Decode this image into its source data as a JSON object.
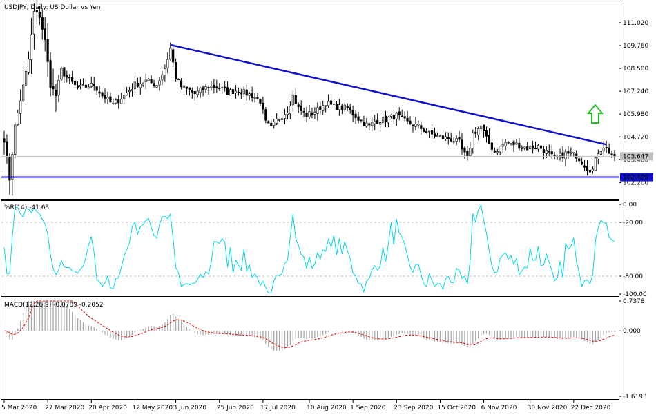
{
  "chart_data": [
    {
      "type": "candlestick",
      "panel": "price",
      "title": "USDJPY, Daily:  US Dollar vs Yen",
      "ylim": [
        101.3,
        112.2
      ],
      "y_ticks": [
        "111.020",
        "109.760",
        "108.500",
        "107.240",
        "105.980",
        "104.720",
        "103.460",
        "102.200"
      ],
      "y_tick_values": [
        111.02,
        109.76,
        108.5,
        107.24,
        105.98,
        104.72,
        103.46,
        102.2
      ],
      "current_price_label": "103.647",
      "current_price": 103.647,
      "support_label": "102.499",
      "support_level": 102.499,
      "trendline": {
        "from": [
          61,
          109.8
        ],
        "to": [
          221,
          104.3
        ]
      },
      "arrow": "up",
      "bar_count": 225,
      "keypoints": [
        [
          0,
          104.6
        ],
        [
          2,
          102.4
        ],
        [
          4,
          105.3
        ],
        [
          7,
          107.5
        ],
        [
          9,
          109.0
        ],
        [
          11,
          111.6
        ],
        [
          13,
          111.4
        ],
        [
          15,
          110.0
        ],
        [
          17,
          107.6
        ],
        [
          19,
          107.0
        ],
        [
          21,
          108.4
        ],
        [
          23,
          108.0
        ],
        [
          27,
          107.4
        ],
        [
          33,
          107.6
        ],
        [
          36,
          107.0
        ],
        [
          40,
          106.5
        ],
        [
          44,
          107.0
        ],
        [
          48,
          107.6
        ],
        [
          52,
          107.8
        ],
        [
          56,
          107.6
        ],
        [
          59,
          108.5
        ],
        [
          61,
          109.6
        ],
        [
          63,
          108.0
        ],
        [
          65,
          107.5
        ],
        [
          70,
          107.1
        ],
        [
          75,
          107.5
        ],
        [
          78,
          107.5
        ],
        [
          82,
          107.2
        ],
        [
          86,
          107.3
        ],
        [
          91,
          107.0
        ],
        [
          94,
          106.7
        ],
        [
          96,
          105.5
        ],
        [
          98,
          105.2
        ],
        [
          100,
          105.6
        ],
        [
          104,
          106.2
        ],
        [
          106,
          107.0
        ],
        [
          108,
          106.3
        ],
        [
          111,
          105.9
        ],
        [
          115,
          106.2
        ],
        [
          118,
          106.6
        ],
        [
          121,
          106.4
        ],
        [
          126,
          106.3
        ],
        [
          128,
          106.0
        ],
        [
          131,
          105.6
        ],
        [
          134,
          105.3
        ],
        [
          136,
          105.6
        ],
        [
          140,
          105.7
        ],
        [
          144,
          105.9
        ],
        [
          148,
          105.5
        ],
        [
          152,
          105.3
        ],
        [
          156,
          104.9
        ],
        [
          160,
          104.7
        ],
        [
          164,
          104.6
        ],
        [
          167,
          104.4
        ],
        [
          168,
          104.0
        ],
        [
          170,
          103.5
        ],
        [
          172,
          104.9
        ],
        [
          175,
          105.3
        ],
        [
          177,
          104.6
        ],
        [
          180,
          103.9
        ],
        [
          184,
          104.4
        ],
        [
          188,
          104.3
        ],
        [
          192,
          104.1
        ],
        [
          196,
          104.2
        ],
        [
          199,
          103.9
        ],
        [
          202,
          103.5
        ],
        [
          206,
          103.8
        ],
        [
          210,
          103.7
        ],
        [
          214,
          103.0
        ],
        [
          216,
          102.9
        ],
        [
          218,
          103.9
        ],
        [
          220,
          104.2
        ],
        [
          222,
          103.9
        ],
        [
          224,
          103.65
        ]
      ]
    },
    {
      "type": "line",
      "panel": "williams_r",
      "label": "%R(14) -41.63",
      "ylim": [
        -100,
        0
      ],
      "y_ticks": [
        "0.00",
        "-20.00",
        "-80.00",
        "-100.00"
      ],
      "y_tick_values": [
        0,
        -20,
        -80,
        -100
      ],
      "grid_levels": [
        -20,
        -80
      ],
      "color": "#00d8e8"
    },
    {
      "type": "macd",
      "panel": "macd",
      "label": "MACD(12,26,9) -0.0789 -0.2052",
      "ylim": [
        -1.6193,
        0.7378
      ],
      "y_ticks": [
        "0.7378",
        "0.000",
        "-1.6193"
      ],
      "y_tick_values": [
        0.7378,
        0,
        -1.6193
      ],
      "signal_color": "#e00000",
      "histogram_color": "#a8a8a8"
    },
    {
      "type": "axis",
      "panel": "time",
      "x_ticks": [
        "5 Mar 2020",
        "27 Mar 2020",
        "20 Apr 2020",
        "12 May 2020",
        "3 Jun 2020",
        "25 Jun 2020",
        "17 Jul 2020",
        "10 Aug 2020",
        "1 Sep 2020",
        "23 Sep 2020",
        "15 Oct 2020",
        "6 Nov 2020",
        "30 Nov 2020",
        "22 Dec 2020"
      ],
      "x_tick_bar_index": [
        0,
        16,
        32,
        48,
        63,
        79,
        95,
        112,
        128,
        144,
        160,
        176,
        193,
        209
      ]
    }
  ]
}
